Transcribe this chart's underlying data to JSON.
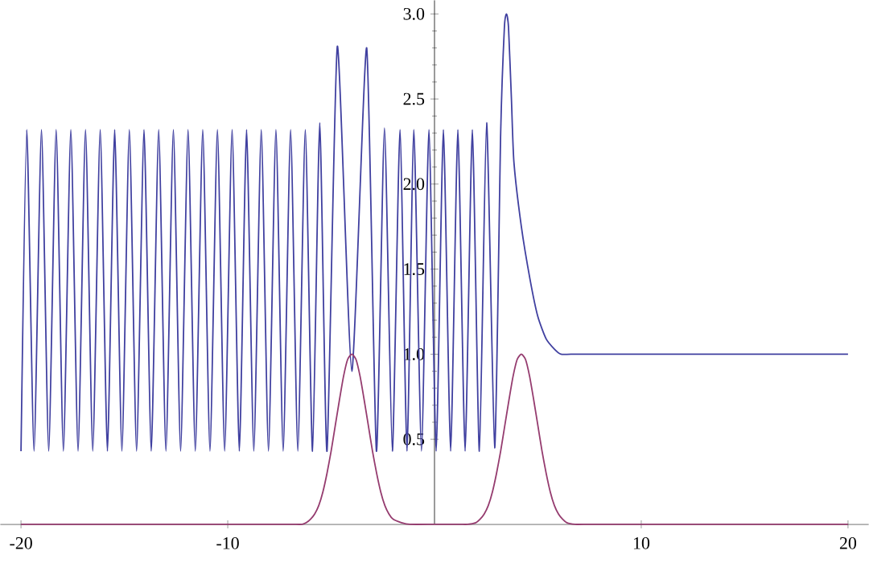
{
  "chart_data": {
    "type": "line",
    "xlim": [
      -21,
      21
    ],
    "ylim": [
      0,
      3.08
    ],
    "xticks": [
      -20,
      -10,
      10,
      20
    ],
    "yticks": [
      0.5,
      {
        "value": 1,
        "label": "1.0"
      },
      1.5,
      {
        "value": 2,
        "label": "2.0"
      },
      2.5,
      {
        "value": 3,
        "label": "3.0"
      }
    ],
    "series": [
      {
        "color": "#4040a0",
        "x": [
          -20.0,
          -19.72,
          -19.37,
          -19.01,
          -18.66,
          -18.3,
          -17.95,
          -17.59,
          -17.24,
          -16.88,
          -16.53,
          -16.17,
          -15.82,
          -15.47,
          -15.12,
          -14.76,
          -14.41,
          -14.05,
          -13.7,
          -13.34,
          -12.99,
          -12.63,
          -12.28,
          -11.92,
          -11.57,
          -11.21,
          -10.86,
          -10.5,
          -10.15,
          -9.79,
          -9.44,
          -9.09,
          -8.74,
          -8.38,
          -8.03,
          -7.67,
          -7.32,
          -6.96,
          -6.61,
          -6.25,
          -5.9,
          -5.55,
          -5.2,
          -4.7,
          -4.0,
          -3.28,
          -2.81,
          -2.42,
          -2.04,
          -1.67,
          -1.33,
          -1.0,
          -0.63,
          -0.27,
          0.08,
          0.43,
          0.78,
          1.13,
          1.48,
          1.83,
          2.17,
          2.52,
          2.91,
          3.2,
          3.38,
          3.48,
          3.58,
          3.72,
          3.84,
          4.2,
          4.62,
          5.0,
          5.4,
          5.8,
          6.12,
          6.6,
          8,
          20
        ],
        "values": [
          0.43,
          2.32,
          0.43,
          2.32,
          0.43,
          2.32,
          0.43,
          2.32,
          0.43,
          2.32,
          0.43,
          2.32,
          0.43,
          2.32,
          0.43,
          2.32,
          0.43,
          2.32,
          0.43,
          2.32,
          0.43,
          2.32,
          0.43,
          2.32,
          0.43,
          2.32,
          0.43,
          2.32,
          0.43,
          2.32,
          0.43,
          2.32,
          0.43,
          2.32,
          0.43,
          2.32,
          0.43,
          2.32,
          0.43,
          2.32,
          0.43,
          2.36,
          0.43,
          2.81,
          0.9,
          2.8,
          0.43,
          2.33,
          0.43,
          2.32,
          0.43,
          2.32,
          0.43,
          2.32,
          0.43,
          2.32,
          0.43,
          2.32,
          0.43,
          2.32,
          0.43,
          2.36,
          0.45,
          2.3,
          2.92,
          3.0,
          2.92,
          2.5,
          2.13,
          1.75,
          1.44,
          1.22,
          1.09,
          1.03,
          1.0,
          1.0,
          1.0,
          1.0
        ]
      },
      {
        "color": "#953c6f",
        "x": [
          -20,
          -10,
          -7.2,
          -6.8,
          -6.4,
          -6.2,
          -6.0,
          -5.8,
          -5.6,
          -5.4,
          -5.2,
          -5.0,
          -4.8,
          -4.6,
          -4.4,
          -4.2,
          -4.0,
          -3.8,
          -3.6,
          -3.4,
          -3.2,
          -3.0,
          -2.8,
          -2.6,
          -2.4,
          -2.2,
          -2.0,
          -1.6,
          -1.2,
          0,
          1.2,
          1.6,
          2.0,
          2.2,
          2.4,
          2.6,
          2.8,
          3.0,
          3.2,
          3.4,
          3.6,
          3.8,
          4.0,
          4.2,
          4.4,
          4.6,
          4.8,
          5.0,
          5.2,
          5.4,
          5.6,
          5.8,
          6.0,
          6.2,
          6.4,
          6.8,
          7.2,
          10,
          20
        ],
        "values": [
          0,
          0,
          0,
          0,
          0,
          0.01,
          0.03,
          0.06,
          0.11,
          0.19,
          0.3,
          0.43,
          0.58,
          0.73,
          0.87,
          0.97,
          1.0,
          0.97,
          0.87,
          0.73,
          0.58,
          0.43,
          0.3,
          0.19,
          0.11,
          0.06,
          0.03,
          0.01,
          0,
          0,
          0,
          0,
          0.01,
          0.03,
          0.06,
          0.11,
          0.19,
          0.3,
          0.43,
          0.58,
          0.73,
          0.87,
          0.97,
          1.0,
          0.97,
          0.87,
          0.73,
          0.58,
          0.43,
          0.3,
          0.19,
          0.11,
          0.06,
          0.03,
          0.01,
          0,
          0,
          0,
          0
        ]
      }
    ]
  }
}
